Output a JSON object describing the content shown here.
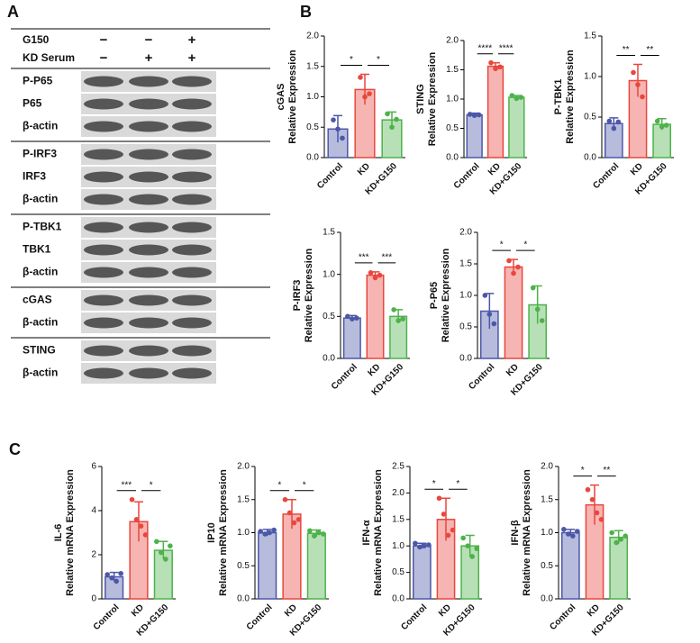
{
  "panels": [
    "A",
    "B",
    "C"
  ],
  "blot": {
    "header": [
      {
        "label": "G150",
        "signs": [
          "−",
          "−",
          "+"
        ]
      },
      {
        "label": "KD Serum",
        "signs": [
          "−",
          "+",
          "+"
        ]
      }
    ],
    "groups": [
      [
        "P-P65",
        "P65",
        "β-actin"
      ],
      [
        "P-IRF3",
        "IRF3",
        "β-actin"
      ],
      [
        "P-TBK1",
        "TBK1",
        "β-actin"
      ],
      [
        "cGAS",
        "β-actin"
      ],
      [
        "STING",
        "β-actin"
      ]
    ]
  },
  "chart_data": [
    {
      "type": "bar",
      "ylabel": [
        "cGAS",
        "Relative Expression"
      ],
      "categories": [
        "Control",
        "KD",
        "KD+G150"
      ],
      "colors": [
        "#4c57a8",
        "#e8473e",
        "#4db24a"
      ],
      "values": [
        0.47,
        1.12,
        0.62
      ],
      "errors": [
        0.22,
        0.25,
        0.13
      ],
      "points": [
        [
          0.62,
          0.47,
          0.32
        ],
        [
          1.32,
          1.0,
          1.05
        ],
        [
          0.72,
          0.5,
          0.63
        ]
      ],
      "ylim": [
        0,
        2
      ],
      "yticks": [
        {
          "value": 0,
          "label": "0.0"
        },
        0.5,
        {
          "value": 1,
          "label": "1.0"
        },
        1.5,
        {
          "value": 2,
          "label": "2.0"
        }
      ],
      "significance": [
        {
          "label": "*",
          "between": [
            "Control",
            "KD"
          ]
        },
        {
          "label": "*",
          "between": [
            "KD",
            "KD+G150"
          ]
        }
      ]
    },
    {
      "type": "bar",
      "ylabel": [
        "STING",
        "Relative Expression"
      ],
      "categories": [
        "Control",
        "KD",
        "KD+G150"
      ],
      "colors": [
        "#4c57a8",
        "#e8473e",
        "#4db24a"
      ],
      "values": [
        0.73,
        1.56,
        1.03
      ],
      "errors": [
        0.03,
        0.06,
        0.03
      ],
      "points": [
        [
          0.74,
          0.72,
          0.73
        ],
        [
          1.62,
          1.52,
          1.55
        ],
        [
          1.06,
          1.01,
          1.03
        ]
      ],
      "ylim": [
        0,
        2
      ],
      "yticks": [
        {
          "value": 0,
          "label": "0.0"
        },
        0.5,
        {
          "value": 1,
          "label": "1.0"
        },
        1.5,
        {
          "value": 2,
          "label": "2.0"
        }
      ],
      "significance": [
        {
          "label": "****",
          "between": [
            "Control",
            "KD"
          ]
        },
        {
          "label": "****",
          "between": [
            "KD",
            "KD+G150"
          ]
        }
      ]
    },
    {
      "type": "bar",
      "ylabel": [
        "P-TBK1",
        "Relative Expression"
      ],
      "categories": [
        "Control",
        "KD",
        "KD+G150"
      ],
      "colors": [
        "#4c57a8",
        "#e8473e",
        "#4db24a"
      ],
      "values": [
        0.42,
        0.95,
        0.41
      ],
      "errors": [
        0.07,
        0.2,
        0.07
      ],
      "points": [
        [
          0.45,
          0.36,
          0.44
        ],
        [
          1.05,
          0.9,
          0.75
        ],
        [
          0.45,
          0.38,
          0.4
        ]
      ],
      "ylim": [
        0,
        1.5
      ],
      "yticks": [
        {
          "value": 0,
          "label": "0.0"
        },
        0.5,
        {
          "value": 1,
          "label": "1.0"
        },
        1.5
      ],
      "significance": [
        {
          "label": "**",
          "between": [
            "Control",
            "KD"
          ]
        },
        {
          "label": "**",
          "between": [
            "KD",
            "KD+G150"
          ]
        }
      ]
    },
    {
      "type": "bar",
      "ylabel": [
        "P-IRF3",
        "Relative Expression"
      ],
      "categories": [
        "Control",
        "KD",
        "KD+G150"
      ],
      "colors": [
        "#4c57a8",
        "#e8473e",
        "#4db24a"
      ],
      "values": [
        0.48,
        0.99,
        0.5
      ],
      "errors": [
        0.03,
        0.04,
        0.08
      ],
      "points": [
        [
          0.5,
          0.47,
          0.48
        ],
        [
          1.02,
          0.96,
          0.99
        ],
        [
          0.58,
          0.45,
          0.47
        ]
      ],
      "ylim": [
        0,
        1.5
      ],
      "yticks": [
        {
          "value": 0,
          "label": "0.0"
        },
        0.5,
        {
          "value": 1,
          "label": "1.0"
        },
        1.5
      ],
      "significance": [
        {
          "label": "***",
          "between": [
            "Control",
            "KD"
          ]
        },
        {
          "label": "***",
          "between": [
            "KD",
            "KD+G150"
          ]
        }
      ]
    },
    {
      "type": "bar",
      "ylabel": [
        "P-P65",
        "Relative Expression"
      ],
      "categories": [
        "Control",
        "KD",
        "KD+G150"
      ],
      "colors": [
        "#4c57a8",
        "#e8473e",
        "#4db24a"
      ],
      "values": [
        0.75,
        1.45,
        0.85
      ],
      "errors": [
        0.28,
        0.12,
        0.3
      ],
      "points": [
        [
          1.0,
          0.7,
          0.55
        ],
        [
          1.55,
          1.35,
          1.45
        ],
        [
          1.12,
          0.78,
          0.6
        ]
      ],
      "ylim": [
        0,
        2
      ],
      "yticks": [
        {
          "value": 0,
          "label": "0.0"
        },
        0.5,
        {
          "value": 1,
          "label": "1.0"
        },
        1.5,
        {
          "value": 2,
          "label": "2.0"
        }
      ],
      "significance": [
        {
          "label": "*",
          "between": [
            "Control",
            "KD"
          ]
        },
        {
          "label": "*",
          "between": [
            "KD",
            "KD+G150"
          ]
        }
      ]
    },
    {
      "type": "bar",
      "ylabel": [
        "IL-6",
        "Relative mRNA Expression"
      ],
      "categories": [
        "Control",
        "KD",
        "KD+G150"
      ],
      "colors": [
        "#4c57a8",
        "#e8473e",
        "#4db24a"
      ],
      "values": [
        1.0,
        3.5,
        2.2
      ],
      "errors": [
        0.2,
        0.9,
        0.4
      ],
      "points": [
        [
          1.1,
          0.95,
          0.8,
          1.15
        ],
        [
          4.5,
          3.6,
          3.3,
          2.9
        ],
        [
          2.6,
          2.1,
          1.8,
          2.4
        ]
      ],
      "ylim": [
        0,
        6
      ],
      "yticks": [
        0,
        2,
        4,
        6
      ],
      "significance": [
        {
          "label": "***",
          "between": [
            "Control",
            "KD"
          ]
        },
        {
          "label": "*",
          "between": [
            "KD",
            "KD+G150"
          ]
        }
      ]
    },
    {
      "type": "bar",
      "ylabel": [
        "IP10",
        "Relative mRNA Expression"
      ],
      "categories": [
        "Control",
        "KD",
        "KD+G150"
      ],
      "colors": [
        "#4c57a8",
        "#e8473e",
        "#4db24a"
      ],
      "values": [
        1.0,
        1.28,
        0.99
      ],
      "errors": [
        0.05,
        0.22,
        0.05
      ],
      "points": [
        [
          1.02,
          0.98,
          1.0,
          1.04
        ],
        [
          1.5,
          1.3,
          1.15,
          1.2
        ],
        [
          1.03,
          0.95,
          1.0,
          0.98
        ]
      ],
      "ylim": [
        0,
        2
      ],
      "yticks": [
        {
          "value": 0,
          "label": "0.0"
        },
        0.5,
        {
          "value": 1,
          "label": "1.0"
        },
        1.5,
        {
          "value": 2,
          "label": "2.0"
        }
      ],
      "significance": [
        {
          "label": "*",
          "between": [
            "Control",
            "KD"
          ]
        },
        {
          "label": "*",
          "between": [
            "KD",
            "KD+G150"
          ]
        }
      ]
    },
    {
      "type": "bar",
      "ylabel": [
        "IFN-α",
        "Relative mRNA Expression"
      ],
      "categories": [
        "Control",
        "KD",
        "KD+G150"
      ],
      "colors": [
        "#4c57a8",
        "#e8473e",
        "#4db24a"
      ],
      "values": [
        1.0,
        1.5,
        1.0
      ],
      "errors": [
        0.05,
        0.4,
        0.2
      ],
      "points": [
        [
          1.05,
          0.98,
          1.0,
          1.02
        ],
        [
          1.9,
          1.6,
          1.2,
          1.3
        ],
        [
          1.15,
          1.0,
          0.8,
          0.95
        ]
      ],
      "ylim": [
        0,
        2.5
      ],
      "yticks": [
        {
          "value": 0,
          "label": "0.0"
        },
        0.5,
        {
          "value": 1,
          "label": "1.0"
        },
        1.5,
        {
          "value": 2,
          "label": "2.0"
        },
        2.5
      ],
      "significance": [
        {
          "label": "*",
          "between": [
            "Control",
            "KD"
          ]
        },
        {
          "label": "*",
          "between": [
            "KD",
            "KD+G150"
          ]
        }
      ]
    },
    {
      "type": "bar",
      "ylabel": [
        "IFN-β",
        "Relative mRNA Expression"
      ],
      "categories": [
        "Control",
        "KD",
        "KD+G150"
      ],
      "colors": [
        "#4c57a8",
        "#e8473e",
        "#4db24a"
      ],
      "values": [
        1.0,
        1.42,
        0.93
      ],
      "errors": [
        0.05,
        0.3,
        0.1
      ],
      "points": [
        [
          1.05,
          0.98,
          0.95,
          1.02
        ],
        [
          1.65,
          1.5,
          1.3,
          1.2
        ],
        [
          1.0,
          0.85,
          0.9,
          0.95
        ]
      ],
      "ylim": [
        0,
        2
      ],
      "yticks": [
        {
          "value": 0,
          "label": "0.0"
        },
        0.5,
        {
          "value": 1,
          "label": "1.0"
        },
        1.5,
        {
          "value": 2,
          "label": "2.0"
        }
      ],
      "significance": [
        {
          "label": "*",
          "between": [
            "Control",
            "KD"
          ]
        },
        {
          "label": "**",
          "between": [
            "KD",
            "KD+G150"
          ]
        }
      ]
    }
  ]
}
